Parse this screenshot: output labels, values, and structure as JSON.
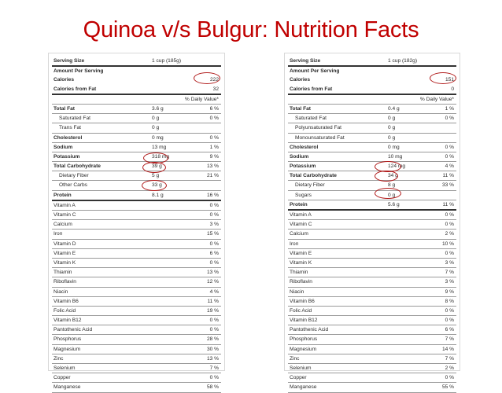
{
  "title": "Quinoa v/s Bulgur: Nutrition Facts",
  "highlight_color": "#b01818",
  "title_color": "#c00000",
  "quinoa": {
    "serving_label": "Serving Size",
    "serving_value": "1 cup (185g)",
    "amount_per_serving": "Amount Per Serving",
    "calories_label": "Calories",
    "calories_value": "222",
    "calories_fat_label": "Calories from Fat",
    "calories_fat_value": "32",
    "dv_header": "% Daily Value*",
    "rows": [
      {
        "name": "Total Fat",
        "amount": "3.6 g",
        "dv": "6 %",
        "bold": true
      },
      {
        "name": "Saturated Fat",
        "amount": "0 g",
        "dv": "0 %",
        "indent": true
      },
      {
        "name": "Trans Fat",
        "amount": "0 g",
        "dv": "",
        "indent": true
      },
      {
        "name": "Cholesterol",
        "amount": "0 mg",
        "dv": "0 %",
        "bold": true
      },
      {
        "name": "Sodium",
        "amount": "13 mg",
        "dv": "1 %",
        "bold": true
      },
      {
        "name": "Potassium",
        "amount": "318 mg",
        "dv": "9 %",
        "bold": true
      },
      {
        "name": "Total Carbohydrate",
        "amount": "39 g",
        "dv": "13 %",
        "bold": true
      },
      {
        "name": "Dietary Fiber",
        "amount": "5 g",
        "dv": "21 %",
        "indent": true
      },
      {
        "name": "Other Carbs",
        "amount": "33 g",
        "dv": "",
        "indent": true
      },
      {
        "name": "Protein",
        "amount": "8.1 g",
        "dv": "16 %",
        "bold": true,
        "thick": true
      },
      {
        "name": "Vitamin A",
        "amount": "",
        "dv": "0 %"
      },
      {
        "name": "Vitamin C",
        "amount": "",
        "dv": "0 %"
      },
      {
        "name": "Calcium",
        "amount": "",
        "dv": "3 %"
      },
      {
        "name": "Iron",
        "amount": "",
        "dv": "15 %"
      },
      {
        "name": "Vitamin D",
        "amount": "",
        "dv": "0 %"
      },
      {
        "name": "Vitamin E",
        "amount": "",
        "dv": "6 %"
      },
      {
        "name": "Vitamin K",
        "amount": "",
        "dv": "0 %"
      },
      {
        "name": "Thiamin",
        "amount": "",
        "dv": "13 %"
      },
      {
        "name": "Riboflavin",
        "amount": "",
        "dv": "12 %"
      },
      {
        "name": "Niacin",
        "amount": "",
        "dv": "4 %"
      },
      {
        "name": "Vitamin B6",
        "amount": "",
        "dv": "11 %"
      },
      {
        "name": "Folic Acid",
        "amount": "",
        "dv": "19 %"
      },
      {
        "name": "Vitamin B12",
        "amount": "",
        "dv": "0 %"
      },
      {
        "name": "Pantothenic Acid",
        "amount": "",
        "dv": "0 %"
      },
      {
        "name": "Phosphorus",
        "amount": "",
        "dv": "28 %"
      },
      {
        "name": "Magnesium",
        "amount": "",
        "dv": "30 %"
      },
      {
        "name": "Zinc",
        "amount": "",
        "dv": "13 %"
      },
      {
        "name": "Selenium",
        "amount": "",
        "dv": "7 %"
      },
      {
        "name": "Copper",
        "amount": "",
        "dv": "0 %"
      },
      {
        "name": "Manganese",
        "amount": "",
        "dv": "58 %"
      }
    ]
  },
  "bulgur": {
    "serving_label": "Serving Size",
    "serving_value": "1 cup (182g)",
    "amount_per_serving": "Amount Per Serving",
    "calories_label": "Calories",
    "calories_value": "151",
    "calories_fat_label": "Calories from Fat",
    "calories_fat_value": "0",
    "dv_header": "% Daily Value*",
    "rows": [
      {
        "name": "Total Fat",
        "amount": "0.4 g",
        "dv": "1 %",
        "bold": true
      },
      {
        "name": "Saturated Fat",
        "amount": "0 g",
        "dv": "0 %",
        "indent": true
      },
      {
        "name": "Polyunsaturated Fat",
        "amount": "0 g",
        "dv": "",
        "indent": true
      },
      {
        "name": "Monounsaturated Fat",
        "amount": "0 g",
        "dv": "",
        "indent": true
      },
      {
        "name": "Cholesterol",
        "amount": "0 mg",
        "dv": "0 %",
        "bold": true
      },
      {
        "name": "Sodium",
        "amount": "10 mg",
        "dv": "0 %",
        "bold": true
      },
      {
        "name": "Potassium",
        "amount": "124 mg",
        "dv": "4 %",
        "bold": true
      },
      {
        "name": "Total Carbohydrate",
        "amount": "34 g",
        "dv": "11 %",
        "bold": true
      },
      {
        "name": "Dietary Fiber",
        "amount": "8 g",
        "dv": "33 %",
        "indent": true
      },
      {
        "name": "Sugars",
        "amount": "0 g",
        "dv": "",
        "indent": true
      },
      {
        "name": "Protein",
        "amount": "5.6 g",
        "dv": "11 %",
        "bold": true,
        "thick": true
      },
      {
        "name": "Vitamin A",
        "amount": "",
        "dv": "0 %"
      },
      {
        "name": "Vitamin C",
        "amount": "",
        "dv": "0 %"
      },
      {
        "name": "Calcium",
        "amount": "",
        "dv": "2 %"
      },
      {
        "name": "Iron",
        "amount": "",
        "dv": "10 %"
      },
      {
        "name": "Vitamin E",
        "amount": "",
        "dv": "0 %"
      },
      {
        "name": "Vitamin K",
        "amount": "",
        "dv": "3 %"
      },
      {
        "name": "Thiamin",
        "amount": "",
        "dv": "7 %"
      },
      {
        "name": "Riboflavin",
        "amount": "",
        "dv": "3 %"
      },
      {
        "name": "Niacin",
        "amount": "",
        "dv": "9 %"
      },
      {
        "name": "Vitamin B6",
        "amount": "",
        "dv": "8 %"
      },
      {
        "name": "Folic Acid",
        "amount": "",
        "dv": "0 %"
      },
      {
        "name": "Vitamin B12",
        "amount": "",
        "dv": "0 %"
      },
      {
        "name": "Pantothenic Acid",
        "amount": "",
        "dv": "6 %"
      },
      {
        "name": "Phosphorus",
        "amount": "",
        "dv": "7 %"
      },
      {
        "name": "Magnesium",
        "amount": "",
        "dv": "14 %"
      },
      {
        "name": "Zinc",
        "amount": "",
        "dv": "7 %"
      },
      {
        "name": "Selenium",
        "amount": "",
        "dv": "2 %"
      },
      {
        "name": "Copper",
        "amount": "",
        "dv": "0 %"
      },
      {
        "name": "Manganese",
        "amount": "",
        "dv": "55 %"
      }
    ]
  }
}
